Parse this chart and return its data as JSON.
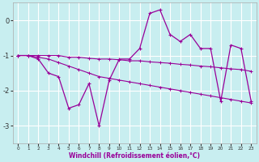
{
  "xlabel": "Windchill (Refroidissement éolien,°C)",
  "bg_color": "#c8eef0",
  "grid_color": "#ffffff",
  "line_color": "#990099",
  "x_values": [
    0,
    1,
    2,
    3,
    4,
    5,
    6,
    7,
    8,
    9,
    10,
    11,
    12,
    13,
    14,
    15,
    16,
    17,
    18,
    19,
    20,
    21,
    22,
    23
  ],
  "y_main": [
    -1.0,
    -1.0,
    -1.1,
    -1.5,
    -1.6,
    -2.5,
    -2.4,
    -1.8,
    -3.0,
    -1.7,
    -1.1,
    -1.1,
    -0.8,
    0.2,
    0.3,
    -0.4,
    -0.6,
    -0.4,
    -0.8,
    -0.8,
    -2.3,
    -0.7,
    -0.8,
    -2.3
  ],
  "y_upper": [
    -1.0,
    -1.0,
    -1.0,
    -1.0,
    -1.0,
    -1.05,
    -1.05,
    -1.08,
    -1.1,
    -1.1,
    -1.12,
    -1.15,
    -1.15,
    -1.18,
    -1.2,
    -1.22,
    -1.25,
    -1.27,
    -1.3,
    -1.32,
    -1.35,
    -1.38,
    -1.4,
    -1.45
  ],
  "y_lower": [
    -1.0,
    -1.0,
    -1.05,
    -1.1,
    -1.2,
    -1.3,
    -1.4,
    -1.5,
    -1.6,
    -1.65,
    -1.7,
    -1.75,
    -1.8,
    -1.85,
    -1.9,
    -1.95,
    -2.0,
    -2.05,
    -2.1,
    -2.15,
    -2.2,
    -2.25,
    -2.3,
    -2.35
  ],
  "ylim": [
    -3.5,
    0.5
  ],
  "yticks": [
    0,
    -1,
    -2,
    -3
  ],
  "xlim": [
    -0.5,
    23.5
  ]
}
